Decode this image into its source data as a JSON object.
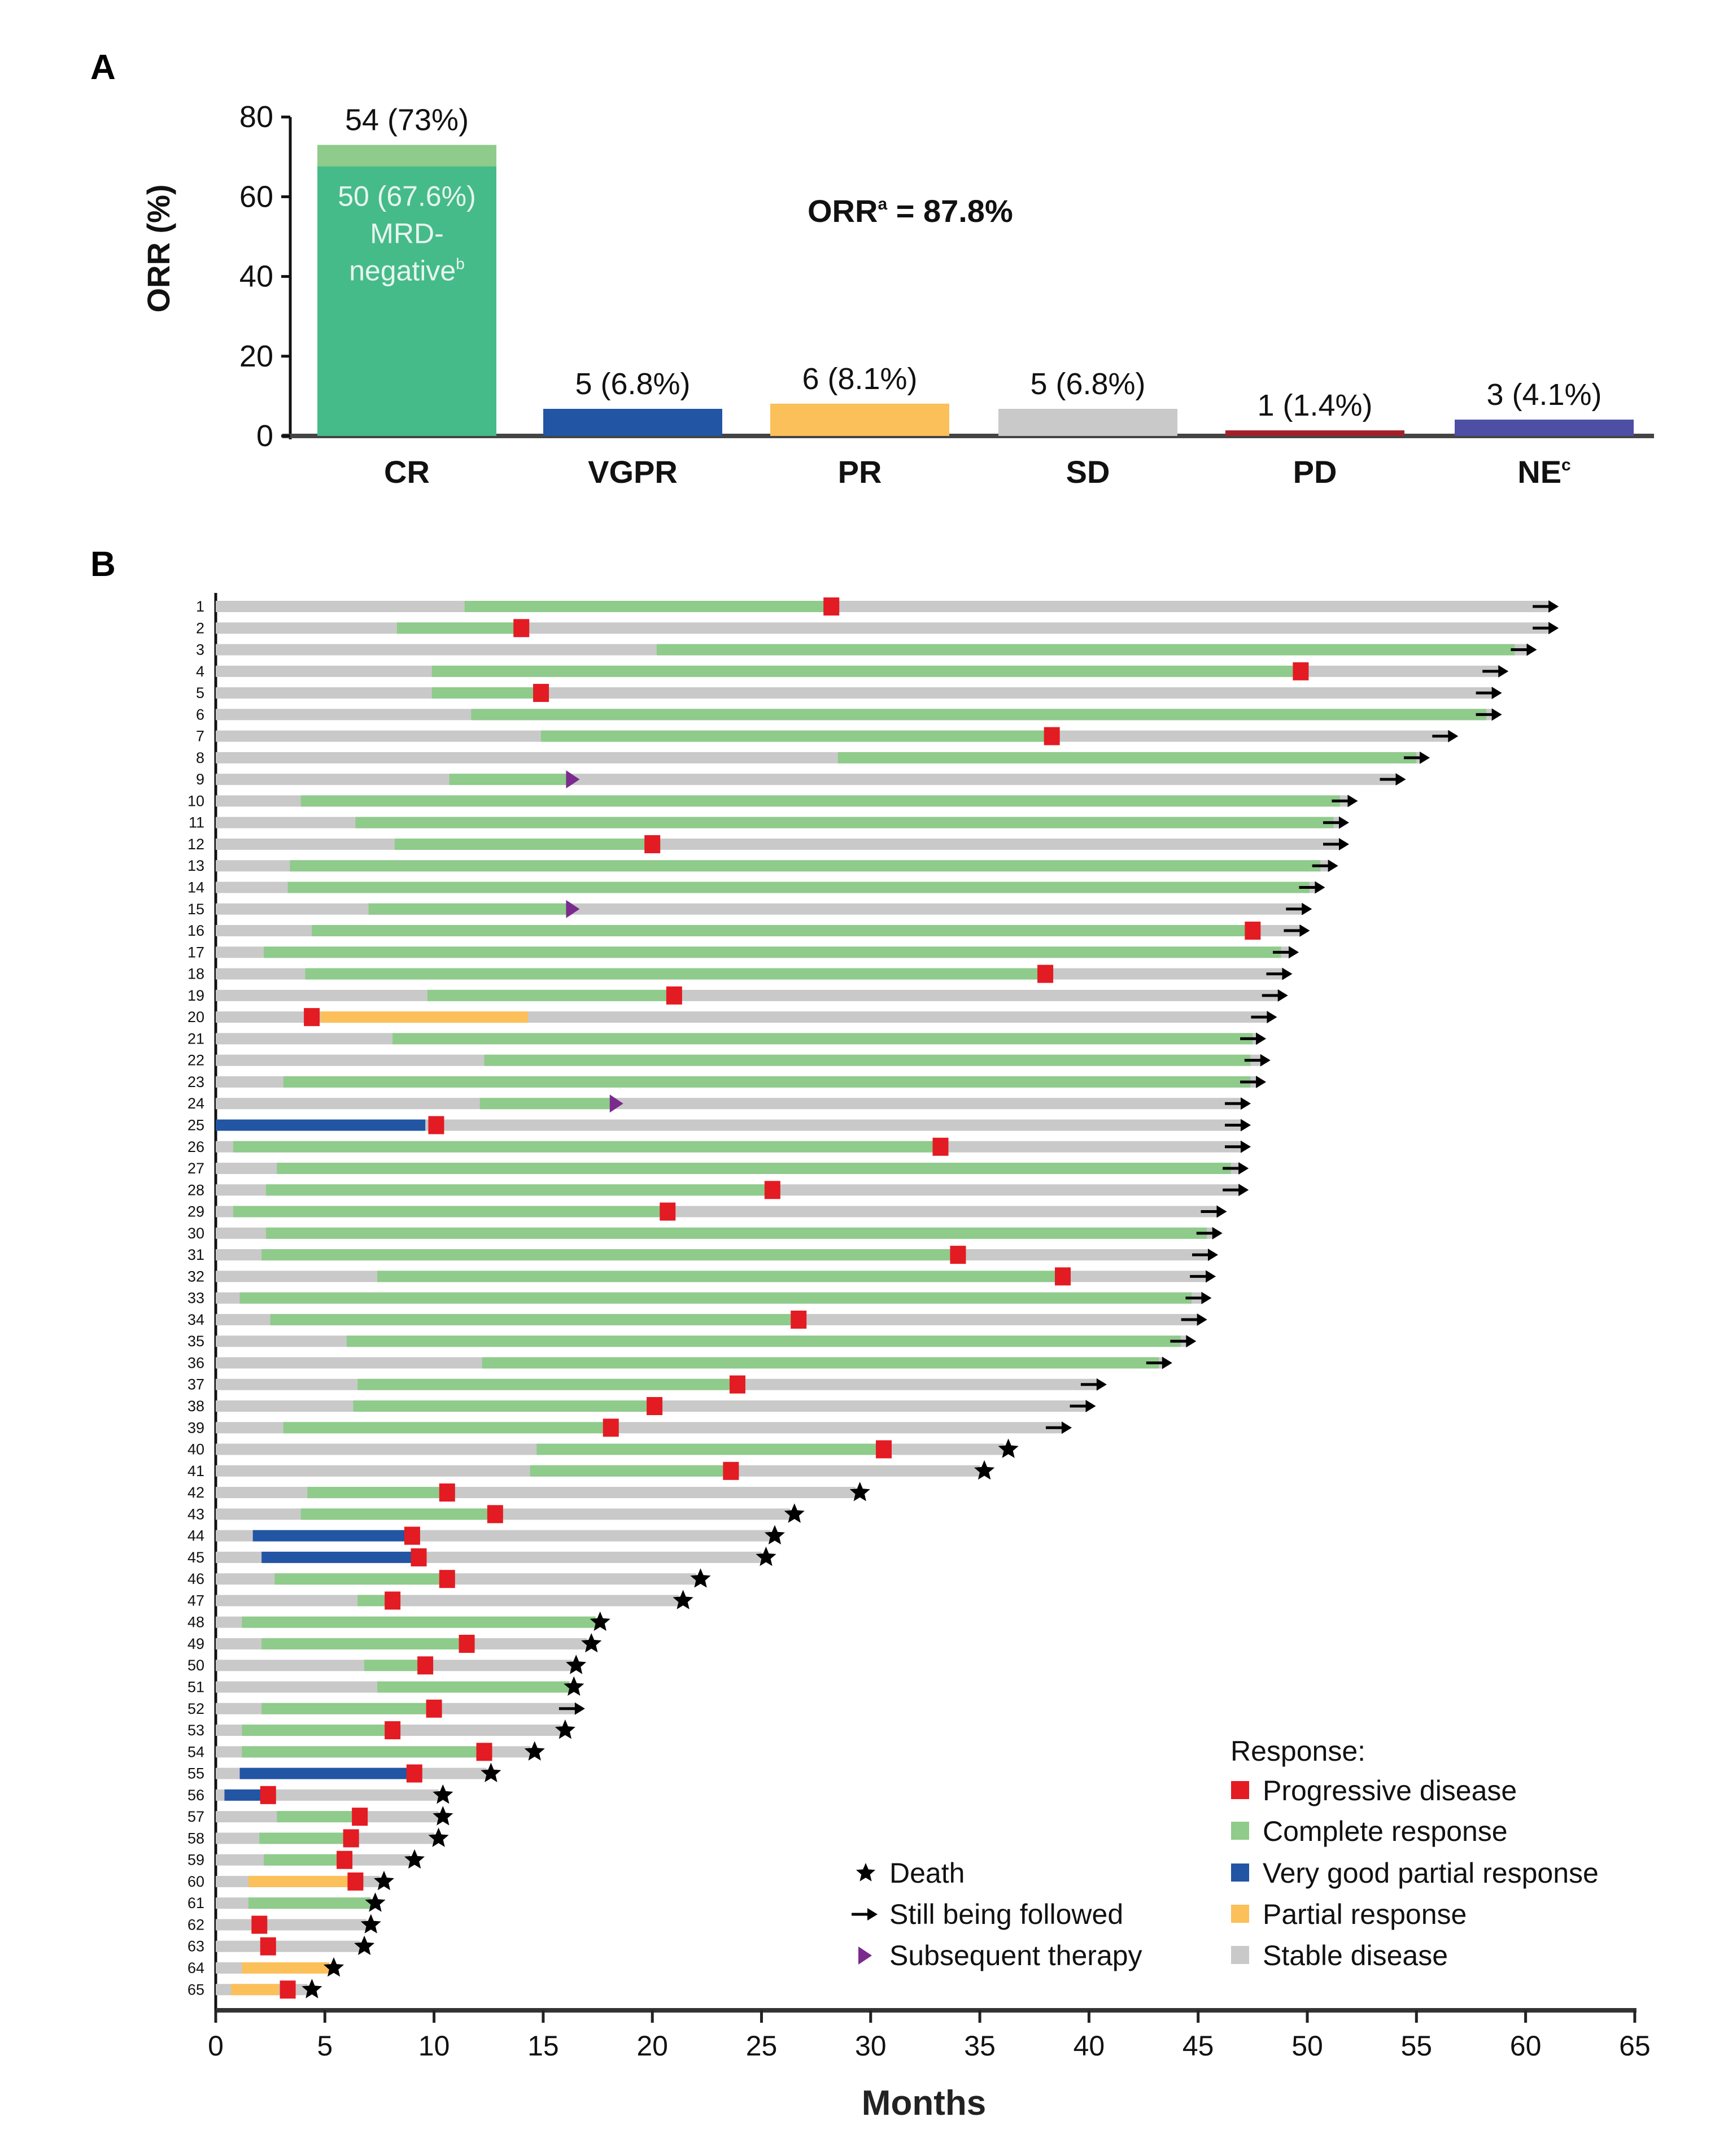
{
  "chart_data": [
    {
      "panel": "A",
      "type": "bar",
      "ylabel": "ORR (%)",
      "ylim": [
        0,
        80
      ],
      "yticks": [
        0,
        20,
        40,
        60,
        80
      ],
      "categories": [
        "CR",
        "VGPR",
        "PR",
        "SD",
        "PD",
        "NE"
      ],
      "category_superscripts": [
        "",
        "",
        "",
        "",
        "",
        "c"
      ],
      "values": [
        73,
        6.8,
        8.1,
        6.8,
        1.4,
        4.1
      ],
      "data_labels": [
        "54 (73%)",
        "5 (6.8%)",
        "6 (8.1%)",
        "5 (6.8%)",
        "1 (1.4%)",
        "3 (4.1%)"
      ],
      "colors": [
        "#8fcb8b",
        "#2255a4",
        "#fbc05a",
        "#c9c9c9",
        "#a31f2a",
        "#4c4fa3"
      ],
      "cr_mrd_negative": {
        "value": 67.6,
        "color": "#45bb8a",
        "lines": [
          "50 (67.6%)",
          "MRD-",
          "negative"
        ],
        "superscript": "b"
      },
      "annotation": {
        "text": "ORR",
        "superscript": "a",
        "value": " = 87.8%"
      }
    },
    {
      "panel": "B",
      "type": "swimmer",
      "xlabel": "Months",
      "xlim": [
        0,
        65
      ],
      "xticks": [
        0,
        5,
        10,
        15,
        20,
        25,
        30,
        35,
        40,
        45,
        50,
        55,
        60,
        65
      ],
      "colors": {
        "PD": "#e31b23",
        "CR": "#8fcb8b",
        "VGPR": "#2255a4",
        "PR": "#fbc05a",
        "SD": "#c9c9c9",
        "death": "#000000",
        "arrow": "#000000",
        "therapy": "#7b2a8e"
      },
      "legend_response": {
        "title": "Response:",
        "items": [
          {
            "key": "PD",
            "label": "Progressive disease"
          },
          {
            "key": "CR",
            "label": "Complete response"
          },
          {
            "key": "VGPR",
            "label": "Very good partial response"
          },
          {
            "key": "PR",
            "label": "Partial response"
          },
          {
            "key": "SD",
            "label": "Stable disease"
          }
        ]
      },
      "legend_events": [
        {
          "key": "death",
          "label": "Death"
        },
        {
          "key": "arrow",
          "label": "Still being followed"
        },
        {
          "key": "therapy",
          "label": "Subsequent therapy"
        }
      ],
      "rows": [
        {
          "id": "1",
          "resp": "CR",
          "start": 11.4,
          "stop": 28.2,
          "pd": 28.2,
          "end": 61.1,
          "outcome": "arrow"
        },
        {
          "id": "2",
          "resp": "CR",
          "start": 8.3,
          "stop": 14.0,
          "pd": 14.0,
          "end": 61.1,
          "outcome": "arrow"
        },
        {
          "id": "3",
          "resp": "CR",
          "start": 20.2,
          "stop": 59.5,
          "end": 60.1,
          "outcome": "arrow"
        },
        {
          "id": "4",
          "resp": "CR",
          "start": 9.9,
          "stop": 49.7,
          "pd": 49.7,
          "end": 58.8,
          "outcome": "arrow"
        },
        {
          "id": "5",
          "resp": "CR",
          "start": 9.9,
          "stop": 14.9,
          "pd": 14.9,
          "end": 58.5,
          "outcome": "arrow"
        },
        {
          "id": "6",
          "resp": "CR",
          "start": 11.7,
          "stop": 58.2,
          "end": 58.5,
          "outcome": "arrow"
        },
        {
          "id": "7",
          "resp": "CR",
          "start": 14.9,
          "stop": 38.3,
          "pd": 38.3,
          "end": 56.5,
          "outcome": "arrow"
        },
        {
          "id": "8",
          "resp": "CR",
          "start": 28.5,
          "stop": 55.0,
          "end": 55.2,
          "outcome": "arrow"
        },
        {
          "id": "9",
          "resp": "CR",
          "start": 10.7,
          "stop": 16.1,
          "therapy": 16.1,
          "end": 54.1,
          "outcome": "arrow"
        },
        {
          "id": "10",
          "resp": "CR",
          "start": 3.9,
          "stop": 51.5,
          "end": 51.9,
          "outcome": "arrow"
        },
        {
          "id": "11",
          "resp": "CR",
          "start": 6.4,
          "stop": 51.2,
          "end": 51.5,
          "outcome": "arrow"
        },
        {
          "id": "12",
          "resp": "CR",
          "start": 8.2,
          "stop": 20.0,
          "pd": 20.0,
          "end": 51.5,
          "outcome": "arrow"
        },
        {
          "id": "13",
          "resp": "CR",
          "start": 3.4,
          "stop": 50.6,
          "end": 51.0,
          "outcome": "arrow"
        },
        {
          "id": "14",
          "resp": "CR",
          "start": 3.3,
          "stop": 50.1,
          "end": 50.4,
          "outcome": "arrow"
        },
        {
          "id": "15",
          "resp": "CR",
          "start": 7.0,
          "stop": 16.1,
          "therapy": 16.1,
          "end": 49.8,
          "outcome": "arrow"
        },
        {
          "id": "16",
          "resp": "CR",
          "start": 4.4,
          "stop": 47.5,
          "pd": 47.5,
          "end": 49.7,
          "outcome": "arrow"
        },
        {
          "id": "17",
          "resp": "CR",
          "start": 2.2,
          "stop": 48.8,
          "end": 49.2,
          "outcome": "arrow"
        },
        {
          "id": "18",
          "resp": "CR",
          "start": 4.1,
          "stop": 38.0,
          "pd": 38.0,
          "end": 48.9,
          "outcome": "arrow"
        },
        {
          "id": "19",
          "resp": "CR",
          "start": 9.7,
          "stop": 21.0,
          "pd": 21.0,
          "end": 48.7,
          "outcome": "arrow"
        },
        {
          "id": "20",
          "resp": "PR",
          "start": 4.8,
          "stop": 14.3,
          "pd": 4.4,
          "end": 48.2,
          "outcome": "arrow"
        },
        {
          "id": "21",
          "resp": "CR",
          "start": 8.1,
          "stop": 47.5,
          "end": 47.7,
          "outcome": "arrow"
        },
        {
          "id": "22",
          "resp": "CR",
          "start": 12.3,
          "stop": 47.4,
          "end": 47.9,
          "outcome": "arrow"
        },
        {
          "id": "23",
          "resp": "CR",
          "start": 3.1,
          "stop": 47.4,
          "end": 47.7,
          "outcome": "arrow"
        },
        {
          "id": "24",
          "resp": "CR",
          "start": 12.1,
          "stop": 18.1,
          "therapy": 18.1,
          "end": 47.0,
          "outcome": "arrow"
        },
        {
          "id": "25",
          "resp": "VGPR",
          "start": 0,
          "stop": 9.6,
          "pd": 10.1,
          "end": 47.0,
          "outcome": "arrow"
        },
        {
          "id": "26",
          "resp": "CR",
          "start": 0.8,
          "stop": 33.2,
          "pd": 33.2,
          "end": 47.0,
          "outcome": "arrow"
        },
        {
          "id": "27",
          "resp": "CR",
          "start": 2.8,
          "stop": 46.5,
          "end": 46.9,
          "outcome": "arrow"
        },
        {
          "id": "28",
          "resp": "CR",
          "start": 2.3,
          "stop": 25.5,
          "pd": 25.5,
          "end": 46.9,
          "outcome": "arrow"
        },
        {
          "id": "29",
          "resp": "CR",
          "start": 0.8,
          "stop": 20.7,
          "pd": 20.7,
          "end": 45.9,
          "outcome": "arrow"
        },
        {
          "id": "30",
          "resp": "CR",
          "start": 2.3,
          "stop": 45.4,
          "end": 45.7,
          "outcome": "arrow"
        },
        {
          "id": "31",
          "resp": "CR",
          "start": 2.1,
          "stop": 34.0,
          "pd": 34.0,
          "end": 45.5,
          "outcome": "arrow"
        },
        {
          "id": "32",
          "resp": "CR",
          "start": 7.4,
          "stop": 38.8,
          "pd": 38.8,
          "end": 45.4,
          "outcome": "arrow"
        },
        {
          "id": "33",
          "resp": "CR",
          "start": 1.1,
          "stop": 44.7,
          "end": 45.2,
          "outcome": "arrow"
        },
        {
          "id": "34",
          "resp": "CR",
          "start": 2.5,
          "stop": 26.7,
          "pd": 26.7,
          "end": 45.0,
          "outcome": "arrow"
        },
        {
          "id": "35",
          "resp": "CR",
          "start": 6.0,
          "stop": 44.2,
          "end": 44.5,
          "outcome": "arrow"
        },
        {
          "id": "36",
          "resp": "CR",
          "start": 12.2,
          "stop": 43.2,
          "end": 43.4,
          "outcome": "arrow"
        },
        {
          "id": "37",
          "resp": "CR",
          "start": 6.5,
          "stop": 23.9,
          "pd": 23.9,
          "end": 40.4,
          "outcome": "arrow"
        },
        {
          "id": "38",
          "resp": "CR",
          "start": 6.3,
          "stop": 20.1,
          "pd": 20.1,
          "end": 39.9,
          "outcome": "arrow"
        },
        {
          "id": "39",
          "resp": "CR",
          "start": 3.1,
          "stop": 18.1,
          "pd": 18.1,
          "end": 38.8,
          "outcome": "arrow"
        },
        {
          "id": "40",
          "resp": "CR",
          "start": 14.7,
          "stop": 30.6,
          "pd": 30.6,
          "end": 36.1,
          "outcome": "death"
        },
        {
          "id": "41",
          "resp": "CR",
          "start": 14.4,
          "stop": 23.6,
          "pd": 23.6,
          "end": 35.0,
          "outcome": "death"
        },
        {
          "id": "42",
          "resp": "CR",
          "start": 4.2,
          "stop": 10.6,
          "pd": 10.6,
          "end": 29.3,
          "outcome": "death"
        },
        {
          "id": "43",
          "resp": "CR",
          "start": 3.9,
          "stop": 12.8,
          "pd": 12.8,
          "end": 26.3,
          "outcome": "death"
        },
        {
          "id": "44",
          "resp": "VGPR",
          "start": 1.7,
          "stop": 9.0,
          "pd": 9.0,
          "end": 25.4,
          "outcome": "death"
        },
        {
          "id": "45",
          "resp": "VGPR",
          "start": 2.1,
          "stop": 9.3,
          "pd": 9.3,
          "end": 25.0,
          "outcome": "death"
        },
        {
          "id": "46",
          "resp": "CR",
          "start": 2.7,
          "stop": 10.6,
          "pd": 10.6,
          "end": 22.0,
          "outcome": "death"
        },
        {
          "id": "47",
          "resp": "CR",
          "start": 6.5,
          "stop": 8.1,
          "pd": 8.1,
          "end": 21.2,
          "outcome": "death"
        },
        {
          "id": "48",
          "resp": "CR",
          "start": 1.2,
          "stop": 17.4,
          "end": 17.4,
          "outcome": "death"
        },
        {
          "id": "49",
          "resp": "CR",
          "start": 2.1,
          "stop": 11.5,
          "pd": 11.5,
          "end": 17.0,
          "outcome": "death"
        },
        {
          "id": "50",
          "resp": "CR",
          "start": 6.8,
          "stop": 9.6,
          "pd": 9.6,
          "end": 16.3,
          "outcome": "death"
        },
        {
          "id": "51",
          "resp": "CR",
          "start": 7.4,
          "stop": 16.2,
          "end": 16.2,
          "outcome": "death"
        },
        {
          "id": "52",
          "resp": "CR",
          "start": 2.1,
          "stop": 10.0,
          "pd": 10.0,
          "end": 16.5,
          "outcome": "arrow"
        },
        {
          "id": "53",
          "resp": "CR",
          "start": 1.2,
          "stop": 8.1,
          "pd": 8.1,
          "end": 15.8,
          "outcome": "death"
        },
        {
          "id": "54",
          "resp": "CR",
          "start": 1.2,
          "stop": 12.3,
          "pd": 12.3,
          "end": 14.4,
          "outcome": "death"
        },
        {
          "id": "55",
          "resp": "VGPR",
          "start": 1.1,
          "stop": 9.1,
          "pd": 9.1,
          "end": 12.4,
          "outcome": "death"
        },
        {
          "id": "56",
          "resp": "VGPR",
          "start": 0.4,
          "stop": 2.4,
          "pd": 2.4,
          "end": 10.2,
          "outcome": "death"
        },
        {
          "id": "57",
          "resp": "CR",
          "start": 2.8,
          "stop": 6.6,
          "pd": 6.6,
          "end": 10.2,
          "outcome": "death"
        },
        {
          "id": "58",
          "resp": "CR",
          "start": 2.0,
          "stop": 6.2,
          "pd": 6.2,
          "end": 10.0,
          "outcome": "death"
        },
        {
          "id": "59",
          "resp": "CR",
          "start": 2.2,
          "stop": 5.9,
          "pd": 5.9,
          "end": 8.9,
          "outcome": "death"
        },
        {
          "id": "60",
          "resp": "PR",
          "start": 1.5,
          "stop": 6.4,
          "pd": 6.4,
          "end": 7.5,
          "outcome": "death"
        },
        {
          "id": "61",
          "resp": "CR",
          "start": 1.5,
          "stop": 7.1,
          "end": 7.1,
          "outcome": "death"
        },
        {
          "id": "62",
          "resp": "SD",
          "start": 0,
          "stop": 0,
          "pd": 2.0,
          "end": 6.9,
          "outcome": "death"
        },
        {
          "id": "63",
          "resp": "SD",
          "start": 0,
          "stop": 0,
          "pd": 2.4,
          "end": 6.6,
          "outcome": "death"
        },
        {
          "id": "64",
          "resp": "PR",
          "start": 1.2,
          "stop": 5.2,
          "end": 5.2,
          "outcome": "death"
        },
        {
          "id": "65",
          "resp": "PR",
          "start": 0.7,
          "stop": 2.9,
          "pd": 3.3,
          "end": 4.2,
          "outcome": "death"
        }
      ]
    }
  ],
  "panels": {
    "a_label": "A",
    "b_label": "B"
  }
}
